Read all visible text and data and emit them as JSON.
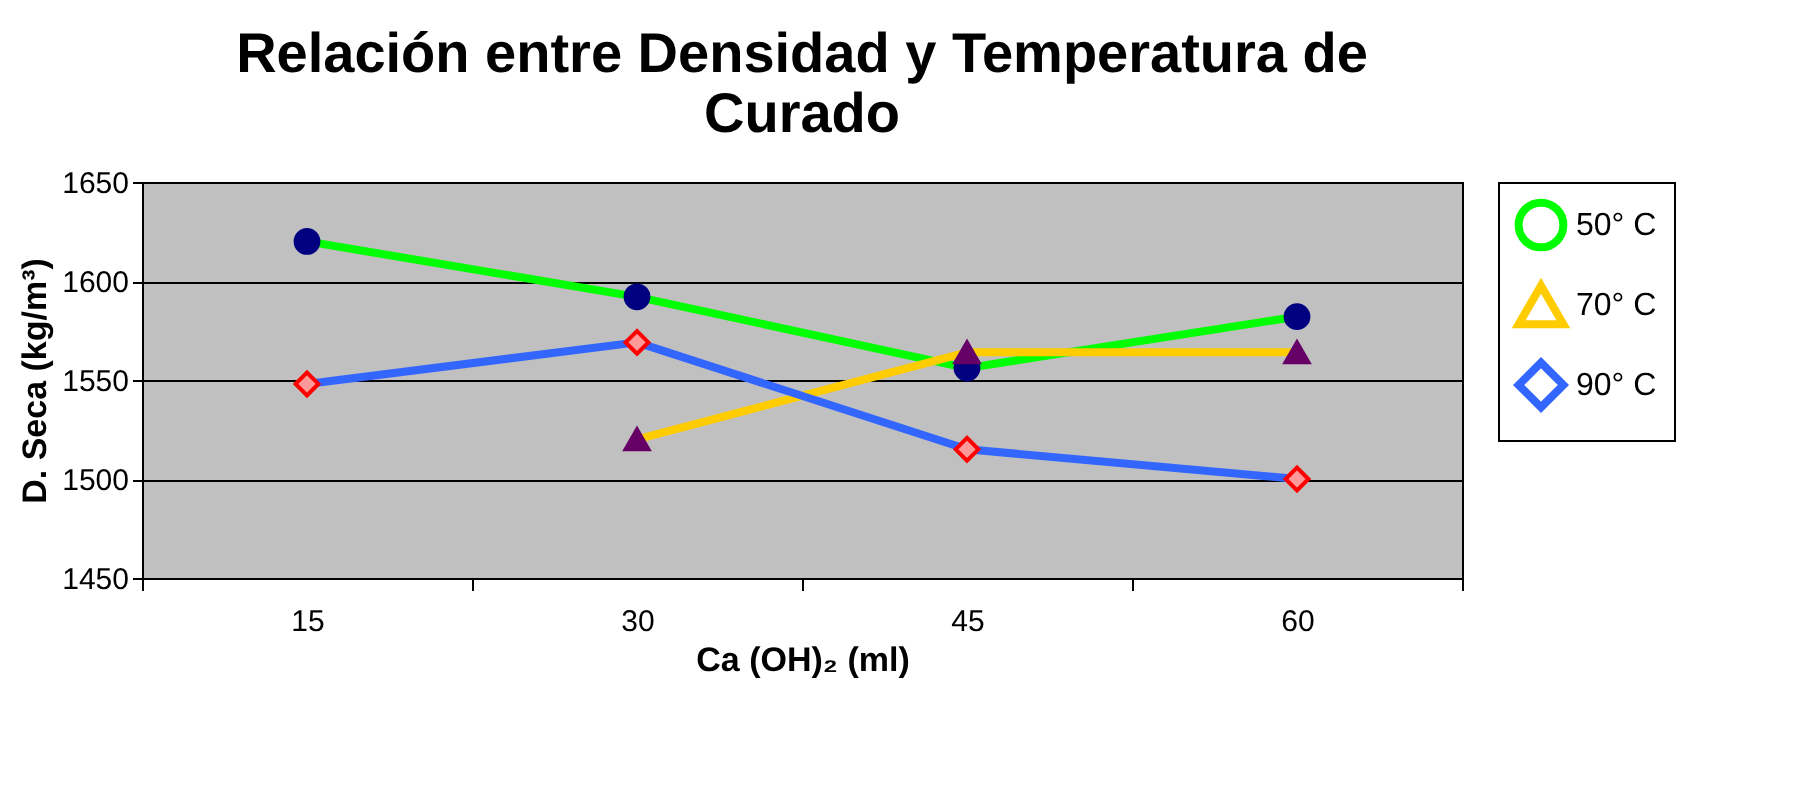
{
  "chart_data": {
    "type": "line",
    "title": "Relación entre Densidad y Temperatura de Curado",
    "xlabel": "Ca (OH)₂ (ml)",
    "ylabel": "D. Seca (kg/m³)",
    "categories": [
      "15",
      "30",
      "45",
      "60"
    ],
    "series": [
      {
        "name": "50° C",
        "color": "#00ff00",
        "marker": "circle",
        "values": [
          1620,
          1592,
          1556,
          1582
        ]
      },
      {
        "name": "70° C",
        "color": "#ffcc00",
        "marker": "triangle",
        "values": [
          null,
          1520,
          1564,
          1564
        ]
      },
      {
        "name": "90° C",
        "color": "#3366ff",
        "marker": "diamond",
        "values": [
          1548,
          1569,
          1515,
          1500
        ]
      }
    ],
    "ylim": [
      1450,
      1650
    ],
    "yticks": [
      1450,
      1500,
      1550,
      1600,
      1650
    ],
    "grid": "y",
    "legend": "right"
  }
}
